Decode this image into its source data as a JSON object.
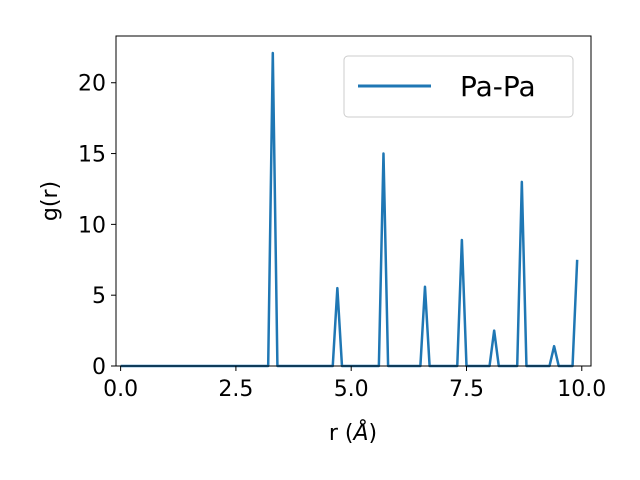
{
  "chart_data": {
    "type": "line",
    "xlabel": "r (",
    "xlabel_unit": "Å",
    "xlabel_close": ")",
    "ylabel": "g(r)",
    "xlim": [
      -0.1,
      10.2
    ],
    "ylim": [
      0,
      23.3
    ],
    "xticks": [
      0.0,
      2.5,
      5.0,
      7.5,
      10.0
    ],
    "xtick_labels": [
      "0.0",
      "2.5",
      "5.0",
      "7.5",
      "10.0"
    ],
    "yticks": [
      0,
      5,
      10,
      15,
      20
    ],
    "ytick_labels": [
      "0",
      "5",
      "10",
      "15",
      "20"
    ],
    "grid": false,
    "legend_position": "top-right",
    "series": [
      {
        "name": "Pa-Pa",
        "color": "#1f77b4",
        "x": [
          0.0,
          3.2,
          3.3,
          3.4,
          4.6,
          4.7,
          4.8,
          5.6,
          5.7,
          5.8,
          6.5,
          6.6,
          6.7,
          7.3,
          7.4,
          7.5,
          8.0,
          8.1,
          8.2,
          8.6,
          8.7,
          8.8,
          9.3,
          9.4,
          9.5,
          9.8,
          9.9
        ],
        "y": [
          0,
          0,
          22.1,
          0,
          0,
          5.5,
          0,
          0,
          15.0,
          0,
          0,
          5.6,
          0,
          0,
          8.9,
          0,
          0,
          2.5,
          0,
          0,
          13.0,
          0,
          0,
          1.4,
          0,
          0,
          7.5
        ]
      }
    ]
  }
}
